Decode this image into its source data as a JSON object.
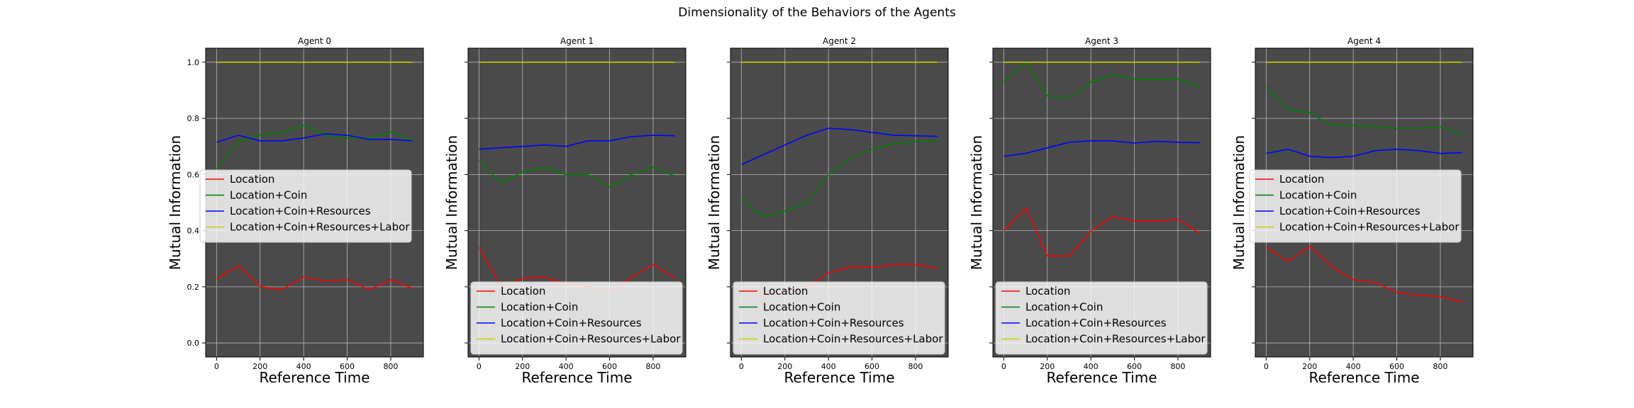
{
  "figure": {
    "title": "Dimensionality of the Behaviors of the Agents"
  },
  "chart_data": [
    {
      "type": "line",
      "title": "Agent 0",
      "xlabel": "Reference Time",
      "ylabel": "Mutual Information",
      "xlim": [
        -50,
        950
      ],
      "ylim": [
        -0.05,
        1.05
      ],
      "xticks": [
        0,
        200,
        400,
        600,
        800
      ],
      "yticks": [
        0.0,
        0.2,
        0.4,
        0.6,
        0.8,
        1.0
      ],
      "ytick_labels_visible": true,
      "grid": true,
      "background": "#4a4a4a",
      "legend_position": "center-left",
      "x": [
        0,
        100,
        200,
        300,
        400,
        500,
        600,
        700,
        800,
        900
      ],
      "series": [
        {
          "name": "Location",
          "color": "#ff0000",
          "values": [
            0.23,
            0.275,
            0.2,
            0.19,
            0.235,
            0.22,
            0.225,
            0.19,
            0.225,
            0.195
          ]
        },
        {
          "name": "Location+Coin",
          "color": "#008000",
          "values": [
            0.62,
            0.72,
            0.74,
            0.75,
            0.775,
            0.74,
            0.73,
            0.73,
            0.75,
            0.72
          ]
        },
        {
          "name": "Location+Coin+Resources",
          "color": "#0000ff",
          "values": [
            0.715,
            0.74,
            0.72,
            0.72,
            0.73,
            0.745,
            0.74,
            0.725,
            0.725,
            0.72
          ]
        },
        {
          "name": "Location+Coin+Resources+Labor",
          "color": "#cccc00",
          "values": [
            1.0,
            1.0,
            1.0,
            1.0,
            1.0,
            1.0,
            1.0,
            1.0,
            1.0,
            1.0
          ]
        }
      ]
    },
    {
      "type": "line",
      "title": "Agent 1",
      "xlabel": "Reference Time",
      "ylabel": "Mutual Information",
      "xlim": [
        -50,
        950
      ],
      "ylim": [
        -0.05,
        1.05
      ],
      "xticks": [
        0,
        200,
        400,
        600,
        800
      ],
      "yticks": [
        0.0,
        0.2,
        0.4,
        0.6,
        0.8,
        1.0
      ],
      "ytick_labels_visible": false,
      "grid": true,
      "background": "#4a4a4a",
      "legend_position": "lower-center",
      "x": [
        0,
        100,
        200,
        300,
        400,
        500,
        600,
        700,
        800,
        900
      ],
      "series": [
        {
          "name": "Location",
          "color": "#ff0000",
          "values": [
            0.34,
            0.2,
            0.23,
            0.235,
            0.21,
            0.2,
            0.18,
            0.235,
            0.28,
            0.23
          ]
        },
        {
          "name": "Location+Coin",
          "color": "#008000",
          "values": [
            0.65,
            0.57,
            0.61,
            0.625,
            0.6,
            0.6,
            0.555,
            0.6,
            0.625,
            0.595
          ]
        },
        {
          "name": "Location+Coin+Resources",
          "color": "#0000ff",
          "values": [
            0.69,
            0.695,
            0.7,
            0.705,
            0.7,
            0.72,
            0.72,
            0.735,
            0.74,
            0.738
          ]
        },
        {
          "name": "Location+Coin+Resources+Labor",
          "color": "#cccc00",
          "values": [
            1.0,
            1.0,
            1.0,
            1.0,
            1.0,
            1.0,
            1.0,
            1.0,
            1.0,
            1.0
          ]
        }
      ]
    },
    {
      "type": "line",
      "title": "Agent 2",
      "xlabel": "Reference Time",
      "ylabel": "Mutual Information",
      "xlim": [
        -50,
        950
      ],
      "ylim": [
        -0.05,
        1.05
      ],
      "xticks": [
        0,
        200,
        400,
        600,
        800
      ],
      "yticks": [
        0.0,
        0.2,
        0.4,
        0.6,
        0.8,
        1.0
      ],
      "ytick_labels_visible": false,
      "grid": true,
      "background": "#4a4a4a",
      "legend_position": "lower-center",
      "x": [
        0,
        100,
        200,
        300,
        400,
        500,
        600,
        700,
        800,
        900
      ],
      "series": [
        {
          "name": "Location",
          "color": "#ff0000",
          "values": [
            0.19,
            0.17,
            0.18,
            0.2,
            0.25,
            0.27,
            0.27,
            0.28,
            0.28,
            0.265
          ]
        },
        {
          "name": "Location+Coin",
          "color": "#008000",
          "values": [
            0.51,
            0.45,
            0.47,
            0.5,
            0.6,
            0.66,
            0.69,
            0.71,
            0.72,
            0.72
          ]
        },
        {
          "name": "Location+Coin+Resources",
          "color": "#0000ff",
          "values": [
            0.635,
            0.67,
            0.705,
            0.74,
            0.765,
            0.76,
            0.75,
            0.74,
            0.738,
            0.736
          ]
        },
        {
          "name": "Location+Coin+Resources+Labor",
          "color": "#cccc00",
          "values": [
            1.0,
            1.0,
            1.0,
            1.0,
            1.0,
            1.0,
            1.0,
            1.0,
            1.0,
            1.0
          ]
        }
      ]
    },
    {
      "type": "line",
      "title": "Agent 3",
      "xlabel": "Reference Time",
      "ylabel": "Mutual Information",
      "xlim": [
        -50,
        950
      ],
      "ylim": [
        -0.05,
        1.05
      ],
      "xticks": [
        0,
        200,
        400,
        600,
        800
      ],
      "yticks": [
        0.0,
        0.2,
        0.4,
        0.6,
        0.8,
        1.0
      ],
      "ytick_labels_visible": false,
      "grid": true,
      "background": "#4a4a4a",
      "legend_position": "lower-center",
      "x": [
        0,
        100,
        200,
        300,
        400,
        500,
        600,
        700,
        800,
        900
      ],
      "series": [
        {
          "name": "Location",
          "color": "#ff0000",
          "values": [
            0.4,
            0.48,
            0.31,
            0.31,
            0.4,
            0.45,
            0.435,
            0.435,
            0.44,
            0.39
          ]
        },
        {
          "name": "Location+Coin",
          "color": "#008000",
          "values": [
            0.93,
            1.0,
            0.88,
            0.87,
            0.93,
            0.955,
            0.94,
            0.94,
            0.94,
            0.91
          ]
        },
        {
          "name": "Location+Coin+Resources",
          "color": "#0000ff",
          "values": [
            0.665,
            0.675,
            0.695,
            0.715,
            0.72,
            0.72,
            0.712,
            0.718,
            0.715,
            0.713
          ]
        },
        {
          "name": "Location+Coin+Resources+Labor",
          "color": "#cccc00",
          "values": [
            1.0,
            1.0,
            1.0,
            1.0,
            1.0,
            1.0,
            1.0,
            1.0,
            1.0,
            1.0
          ]
        }
      ]
    },
    {
      "type": "line",
      "title": "Agent 4",
      "xlabel": "Reference Time",
      "ylabel": "Mutual Information",
      "xlim": [
        -50,
        950
      ],
      "ylim": [
        -0.05,
        1.05
      ],
      "xticks": [
        0,
        200,
        400,
        600,
        800
      ],
      "yticks": [
        0.0,
        0.2,
        0.4,
        0.6,
        0.8,
        1.0
      ],
      "ytick_labels_visible": false,
      "grid": true,
      "background": "#4a4a4a",
      "legend_position": "center-left",
      "x": [
        0,
        100,
        200,
        300,
        400,
        500,
        600,
        700,
        800,
        900
      ],
      "series": [
        {
          "name": "Location",
          "color": "#ff0000",
          "values": [
            0.34,
            0.29,
            0.345,
            0.27,
            0.225,
            0.215,
            0.18,
            0.17,
            0.165,
            0.145
          ]
        },
        {
          "name": "Location+Coin",
          "color": "#008000",
          "values": [
            0.91,
            0.83,
            0.82,
            0.775,
            0.775,
            0.77,
            0.765,
            0.765,
            0.77,
            0.74
          ]
        },
        {
          "name": "Location+Coin+Resources",
          "color": "#0000ff",
          "values": [
            0.675,
            0.69,
            0.665,
            0.66,
            0.665,
            0.685,
            0.69,
            0.685,
            0.675,
            0.678
          ]
        },
        {
          "name": "Location+Coin+Resources+Labor",
          "color": "#cccc00",
          "values": [
            1.0,
            1.0,
            1.0,
            1.0,
            1.0,
            1.0,
            1.0,
            1.0,
            1.0,
            1.0
          ]
        }
      ]
    }
  ]
}
